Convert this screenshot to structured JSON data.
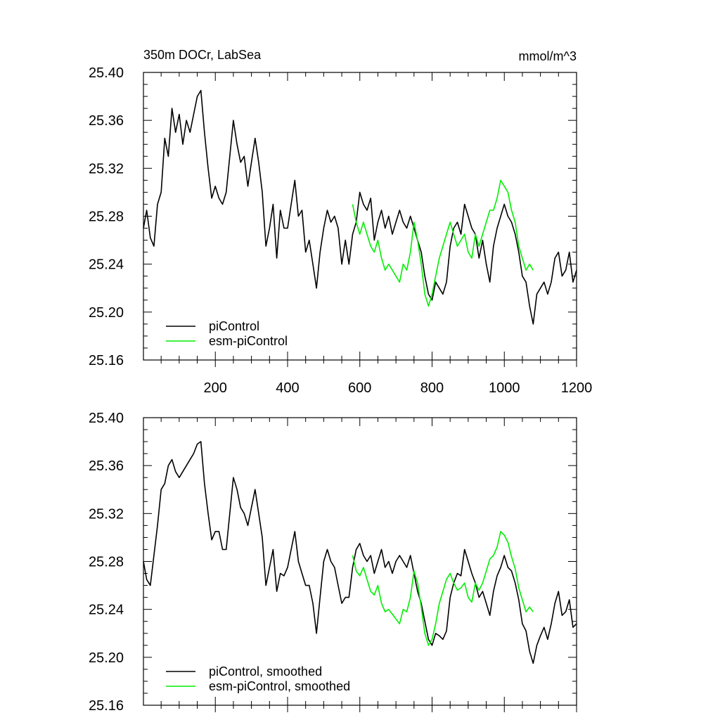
{
  "chart_data": [
    {
      "type": "line",
      "title": "350m DOCr, LabSea",
      "units": "mmol/m^3",
      "xlabel": "",
      "ylabel": "",
      "xlim": [
        1,
        1200
      ],
      "ylim": [
        25.16,
        25.4
      ],
      "x_ticks": [
        "200",
        "400",
        "600",
        "800",
        "1000",
        "1200"
      ],
      "y_ticks": [
        "25.40",
        "25.36",
        "25.32",
        "25.28",
        "25.24",
        "25.20",
        "25.16"
      ],
      "grid": false,
      "legend_position": "bottom-left",
      "series": [
        {
          "name": "piControl",
          "color": "#000000",
          "x": [
            1,
            10,
            20,
            30,
            40,
            50,
            60,
            70,
            80,
            90,
            100,
            110,
            120,
            130,
            140,
            150,
            160,
            170,
            180,
            190,
            200,
            210,
            220,
            230,
            240,
            250,
            260,
            270,
            280,
            290,
            300,
            310,
            320,
            330,
            340,
            350,
            360,
            370,
            380,
            390,
            400,
            410,
            420,
            430,
            440,
            450,
            460,
            470,
            480,
            490,
            500,
            510,
            520,
            530,
            540,
            550,
            560,
            570,
            580,
            590,
            600,
            610,
            620,
            630,
            640,
            650,
            660,
            670,
            680,
            690,
            700,
            710,
            720,
            730,
            740,
            750,
            760,
            770,
            780,
            790,
            800,
            810,
            820,
            830,
            840,
            850,
            860,
            870,
            880,
            890,
            900,
            910,
            920,
            930,
            940,
            950,
            960,
            970,
            980,
            990,
            1000,
            1010,
            1020,
            1030,
            1040,
            1050,
            1060,
            1070,
            1080,
            1090,
            1100,
            1110,
            1120,
            1130,
            1140,
            1150,
            1160,
            1170,
            1180,
            1190,
            1200
          ],
          "y": [
            25.27,
            25.285,
            25.262,
            25.255,
            25.29,
            25.3,
            25.345,
            25.33,
            25.37,
            25.35,
            25.365,
            25.34,
            25.36,
            25.35,
            25.365,
            25.38,
            25.385,
            25.35,
            25.32,
            25.295,
            25.305,
            25.295,
            25.29,
            25.3,
            25.33,
            25.36,
            25.34,
            25.325,
            25.33,
            25.305,
            25.325,
            25.345,
            25.325,
            25.3,
            25.255,
            25.27,
            25.29,
            25.245,
            25.285,
            25.27,
            25.27,
            25.29,
            25.31,
            25.28,
            25.285,
            25.25,
            25.26,
            25.24,
            25.22,
            25.25,
            25.27,
            25.285,
            25.275,
            25.28,
            25.27,
            25.24,
            25.26,
            25.24,
            25.265,
            25.275,
            25.3,
            25.29,
            25.285,
            25.295,
            25.26,
            25.275,
            25.285,
            25.27,
            25.28,
            25.265,
            25.275,
            25.285,
            25.275,
            25.27,
            25.28,
            25.27,
            25.26,
            25.25,
            25.23,
            25.215,
            25.21,
            25.225,
            25.22,
            25.215,
            25.225,
            25.255,
            25.27,
            25.275,
            25.265,
            25.29,
            25.28,
            25.27,
            25.265,
            25.245,
            25.26,
            25.24,
            25.225,
            25.255,
            25.27,
            25.28,
            25.29,
            25.28,
            25.275,
            25.265,
            25.25,
            25.23,
            25.225,
            25.205,
            25.19,
            25.215,
            25.22,
            25.225,
            25.215,
            25.225,
            25.245,
            25.25,
            25.23,
            25.235,
            25.25,
            25.225,
            25.235
          ]
        },
        {
          "name": "esm-piControl",
          "color": "#00ee00",
          "x": [
            580,
            590,
            600,
            610,
            620,
            630,
            640,
            650,
            660,
            670,
            680,
            690,
            700,
            710,
            720,
            730,
            740,
            750,
            760,
            770,
            780,
            790,
            800,
            810,
            820,
            830,
            840,
            850,
            860,
            870,
            880,
            890,
            900,
            910,
            920,
            930,
            940,
            950,
            960,
            970,
            980,
            990,
            1000,
            1010,
            1020,
            1030,
            1040,
            1050,
            1060,
            1070,
            1080
          ],
          "y": [
            25.29,
            25.275,
            25.265,
            25.275,
            25.265,
            25.255,
            25.25,
            25.26,
            25.245,
            25.235,
            25.24,
            25.235,
            25.23,
            25.225,
            25.24,
            25.235,
            25.25,
            25.275,
            25.26,
            25.24,
            25.215,
            25.205,
            25.215,
            25.23,
            25.245,
            25.255,
            25.265,
            25.275,
            25.265,
            25.255,
            25.26,
            25.265,
            25.25,
            25.245,
            25.265,
            25.255,
            25.265,
            25.275,
            25.285,
            25.285,
            25.295,
            25.31,
            25.305,
            25.3,
            25.285,
            25.275,
            25.255,
            25.245,
            25.235,
            25.24,
            25.235
          ]
        }
      ]
    },
    {
      "type": "line",
      "title": "",
      "xlabel": "",
      "ylabel": "",
      "xlim": [
        1,
        1200
      ],
      "ylim": [
        25.16,
        25.4
      ],
      "y_ticks": [
        "25.40",
        "25.36",
        "25.32",
        "25.28",
        "25.24",
        "25.20",
        "25.16"
      ],
      "grid": false,
      "legend_position": "bottom-left",
      "series": [
        {
          "name": "piControl, smoothed",
          "color": "#000000",
          "x": [
            1,
            10,
            20,
            30,
            40,
            50,
            60,
            70,
            80,
            90,
            100,
            110,
            120,
            130,
            140,
            150,
            160,
            170,
            180,
            190,
            200,
            210,
            220,
            230,
            240,
            250,
            260,
            270,
            280,
            290,
            300,
            310,
            320,
            330,
            340,
            350,
            360,
            370,
            380,
            390,
            400,
            410,
            420,
            430,
            440,
            450,
            460,
            470,
            480,
            490,
            500,
            510,
            520,
            530,
            540,
            550,
            560,
            570,
            580,
            590,
            600,
            610,
            620,
            630,
            640,
            650,
            660,
            670,
            680,
            690,
            700,
            710,
            720,
            730,
            740,
            750,
            760,
            770,
            780,
            790,
            800,
            810,
            820,
            830,
            840,
            850,
            860,
            870,
            880,
            890,
            900,
            910,
            920,
            930,
            940,
            950,
            960,
            970,
            980,
            990,
            1000,
            1010,
            1020,
            1030,
            1040,
            1050,
            1060,
            1070,
            1080,
            1090,
            1100,
            1110,
            1120,
            1130,
            1140,
            1150,
            1160,
            1170,
            1180,
            1190,
            1200
          ],
          "y": [
            25.28,
            25.265,
            25.26,
            25.285,
            25.31,
            25.34,
            25.345,
            25.36,
            25.365,
            25.355,
            25.35,
            25.355,
            25.36,
            25.365,
            25.37,
            25.378,
            25.38,
            25.345,
            25.32,
            25.298,
            25.305,
            25.305,
            25.29,
            25.29,
            25.32,
            25.35,
            25.34,
            25.325,
            25.32,
            25.31,
            25.325,
            25.34,
            25.32,
            25.3,
            25.26,
            25.275,
            25.29,
            25.255,
            25.27,
            25.268,
            25.275,
            25.29,
            25.305,
            25.28,
            25.27,
            25.26,
            25.26,
            25.245,
            25.22,
            25.25,
            25.28,
            25.29,
            25.28,
            25.275,
            25.26,
            25.245,
            25.25,
            25.25,
            25.275,
            25.29,
            25.295,
            25.285,
            25.28,
            25.285,
            25.27,
            25.28,
            25.29,
            25.275,
            25.28,
            25.27,
            25.28,
            25.285,
            25.28,
            25.275,
            25.285,
            25.27,
            25.255,
            25.245,
            25.23,
            25.215,
            25.21,
            25.22,
            25.218,
            25.215,
            25.222,
            25.25,
            25.262,
            25.27,
            25.268,
            25.29,
            25.28,
            25.27,
            25.262,
            25.25,
            25.255,
            25.245,
            25.235,
            25.255,
            25.268,
            25.275,
            25.285,
            25.275,
            25.272,
            25.262,
            25.248,
            25.228,
            25.222,
            25.205,
            25.195,
            25.21,
            25.218,
            25.225,
            25.215,
            25.228,
            25.245,
            25.255,
            25.235,
            25.238,
            25.248,
            25.225,
            25.228
          ]
        },
        {
          "name": "esm-piControl, smoothed",
          "color": "#00ee00",
          "x": [
            580,
            590,
            600,
            610,
            620,
            630,
            640,
            650,
            660,
            670,
            680,
            690,
            700,
            710,
            720,
            730,
            740,
            750,
            760,
            770,
            780,
            790,
            800,
            810,
            820,
            830,
            840,
            850,
            860,
            870,
            880,
            890,
            900,
            910,
            920,
            930,
            940,
            950,
            960,
            970,
            980,
            990,
            1000,
            1010,
            1020,
            1030,
            1040,
            1050,
            1060,
            1070,
            1080
          ],
          "y": [
            25.285,
            25.272,
            25.268,
            25.275,
            25.265,
            25.255,
            25.252,
            25.26,
            25.245,
            25.238,
            25.24,
            25.236,
            25.232,
            25.228,
            25.24,
            25.238,
            25.25,
            25.272,
            25.262,
            25.242,
            25.22,
            25.21,
            25.215,
            25.228,
            25.245,
            25.255,
            25.265,
            25.27,
            25.262,
            25.256,
            25.258,
            25.262,
            25.25,
            25.246,
            25.262,
            25.256,
            25.262,
            25.272,
            25.282,
            25.285,
            25.292,
            25.305,
            25.302,
            25.296,
            25.284,
            25.274,
            25.258,
            25.248,
            25.238,
            25.242,
            25.238
          ]
        }
      ]
    }
  ]
}
